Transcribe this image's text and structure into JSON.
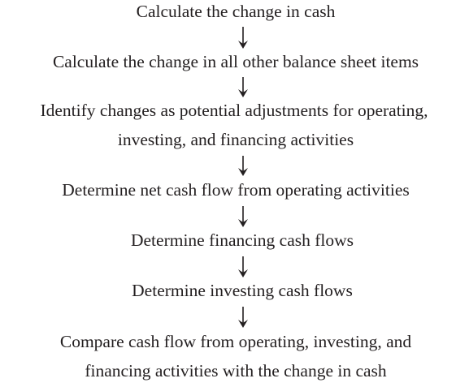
{
  "nodes": [
    {
      "lines": [
        "Calculate the change in cash"
      ]
    },
    {
      "lines": [
        "Calculate the change in all other balance sheet items"
      ]
    },
    {
      "lines": [
        "Identify changes as potential adjustments for operating,",
        "investing, and financing activities"
      ]
    },
    {
      "lines": [
        "Determine net cash flow from operating activities"
      ]
    },
    {
      "lines": [
        "Determine financing cash flows"
      ]
    },
    {
      "lines": [
        "Determine investing cash flows"
      ]
    },
    {
      "lines": [
        "Compare cash flow from operating, investing, and",
        "financing activities with the change in cash"
      ]
    }
  ]
}
